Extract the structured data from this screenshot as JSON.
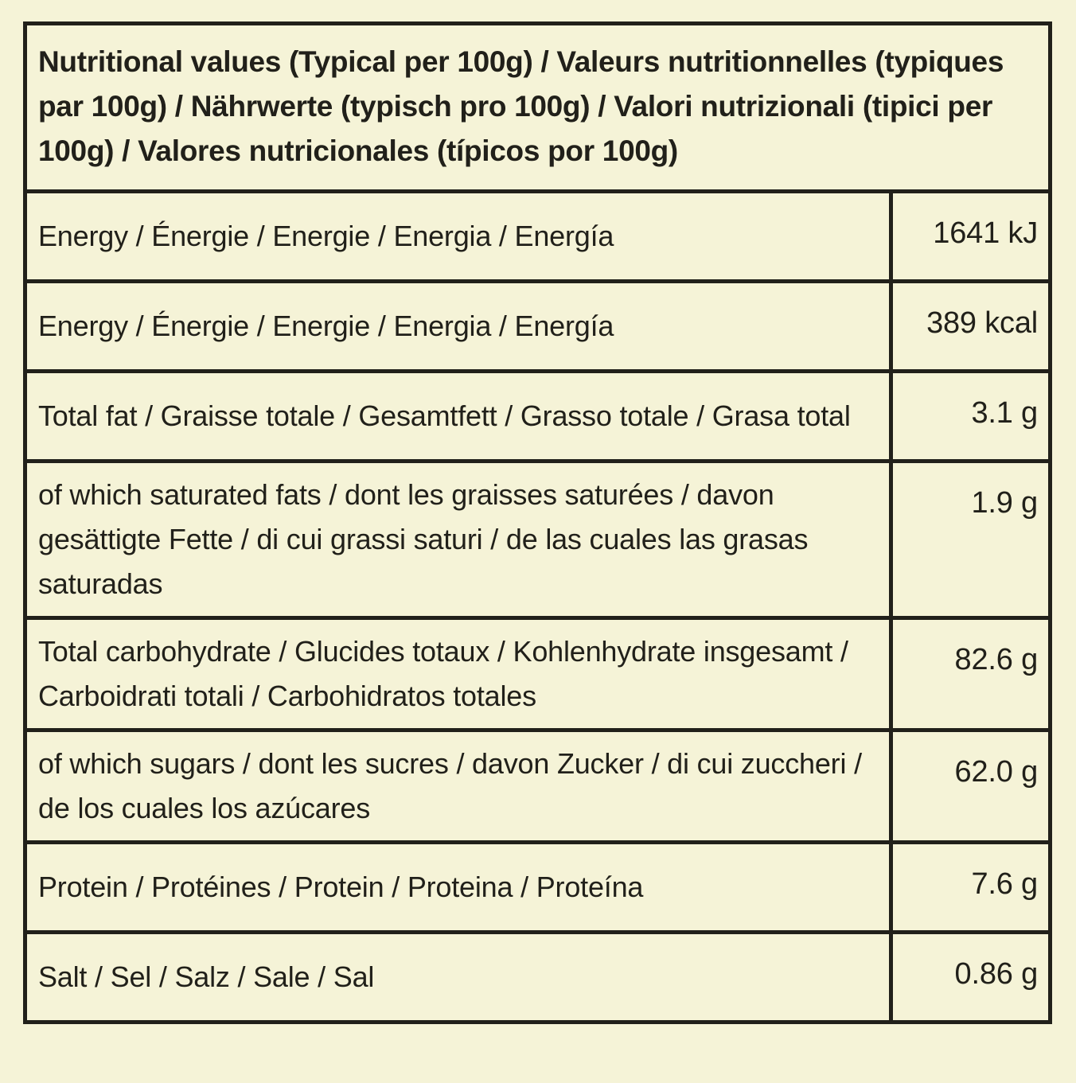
{
  "page": {
    "background_color": "#f5f3d7",
    "ink_color": "#21201a"
  },
  "table": {
    "header": "Nutritional values (Typical per 100g) / Valeurs nutritionnelles (typiques par 100g) / Nährwerte (typisch pro 100g) / Valori nutrizionali (tipici per 100g) / Valores nutricionales (típicos por 100g)",
    "rows": [
      {
        "label": "Energy / Énergie / Energie / Energia / Energía",
        "value": "1641 kJ"
      },
      {
        "label": "Energy / Énergie / Energie / Energia / Energía",
        "value": "389 kcal"
      },
      {
        "label": "Total fat / Graisse totale / Gesamtfett / Grasso totale / Grasa total",
        "value": "3.1 g"
      },
      {
        "label": "of which saturated fats / dont les graisses saturées / davon gesättigte Fette / di cui grassi saturi / de las cuales las grasas saturadas",
        "value": "1.9 g"
      },
      {
        "label": "Total carbohydrate / Glucides totaux / Kohlenhydrate insgesamt / Carboidrati totali / Carbohidratos totales",
        "value": "82.6 g"
      },
      {
        "label": "of which sugars / dont les sucres / davon Zucker / di cui zuccheri / de los cuales los azúcares",
        "value": "62.0 g"
      },
      {
        "label": "Protein / Protéines / Protein / Proteina / Proteína",
        "value": "7.6 g"
      },
      {
        "label": "Salt / Sel / Salz / Sale / Sal",
        "value": "0.86 g"
      }
    ]
  }
}
